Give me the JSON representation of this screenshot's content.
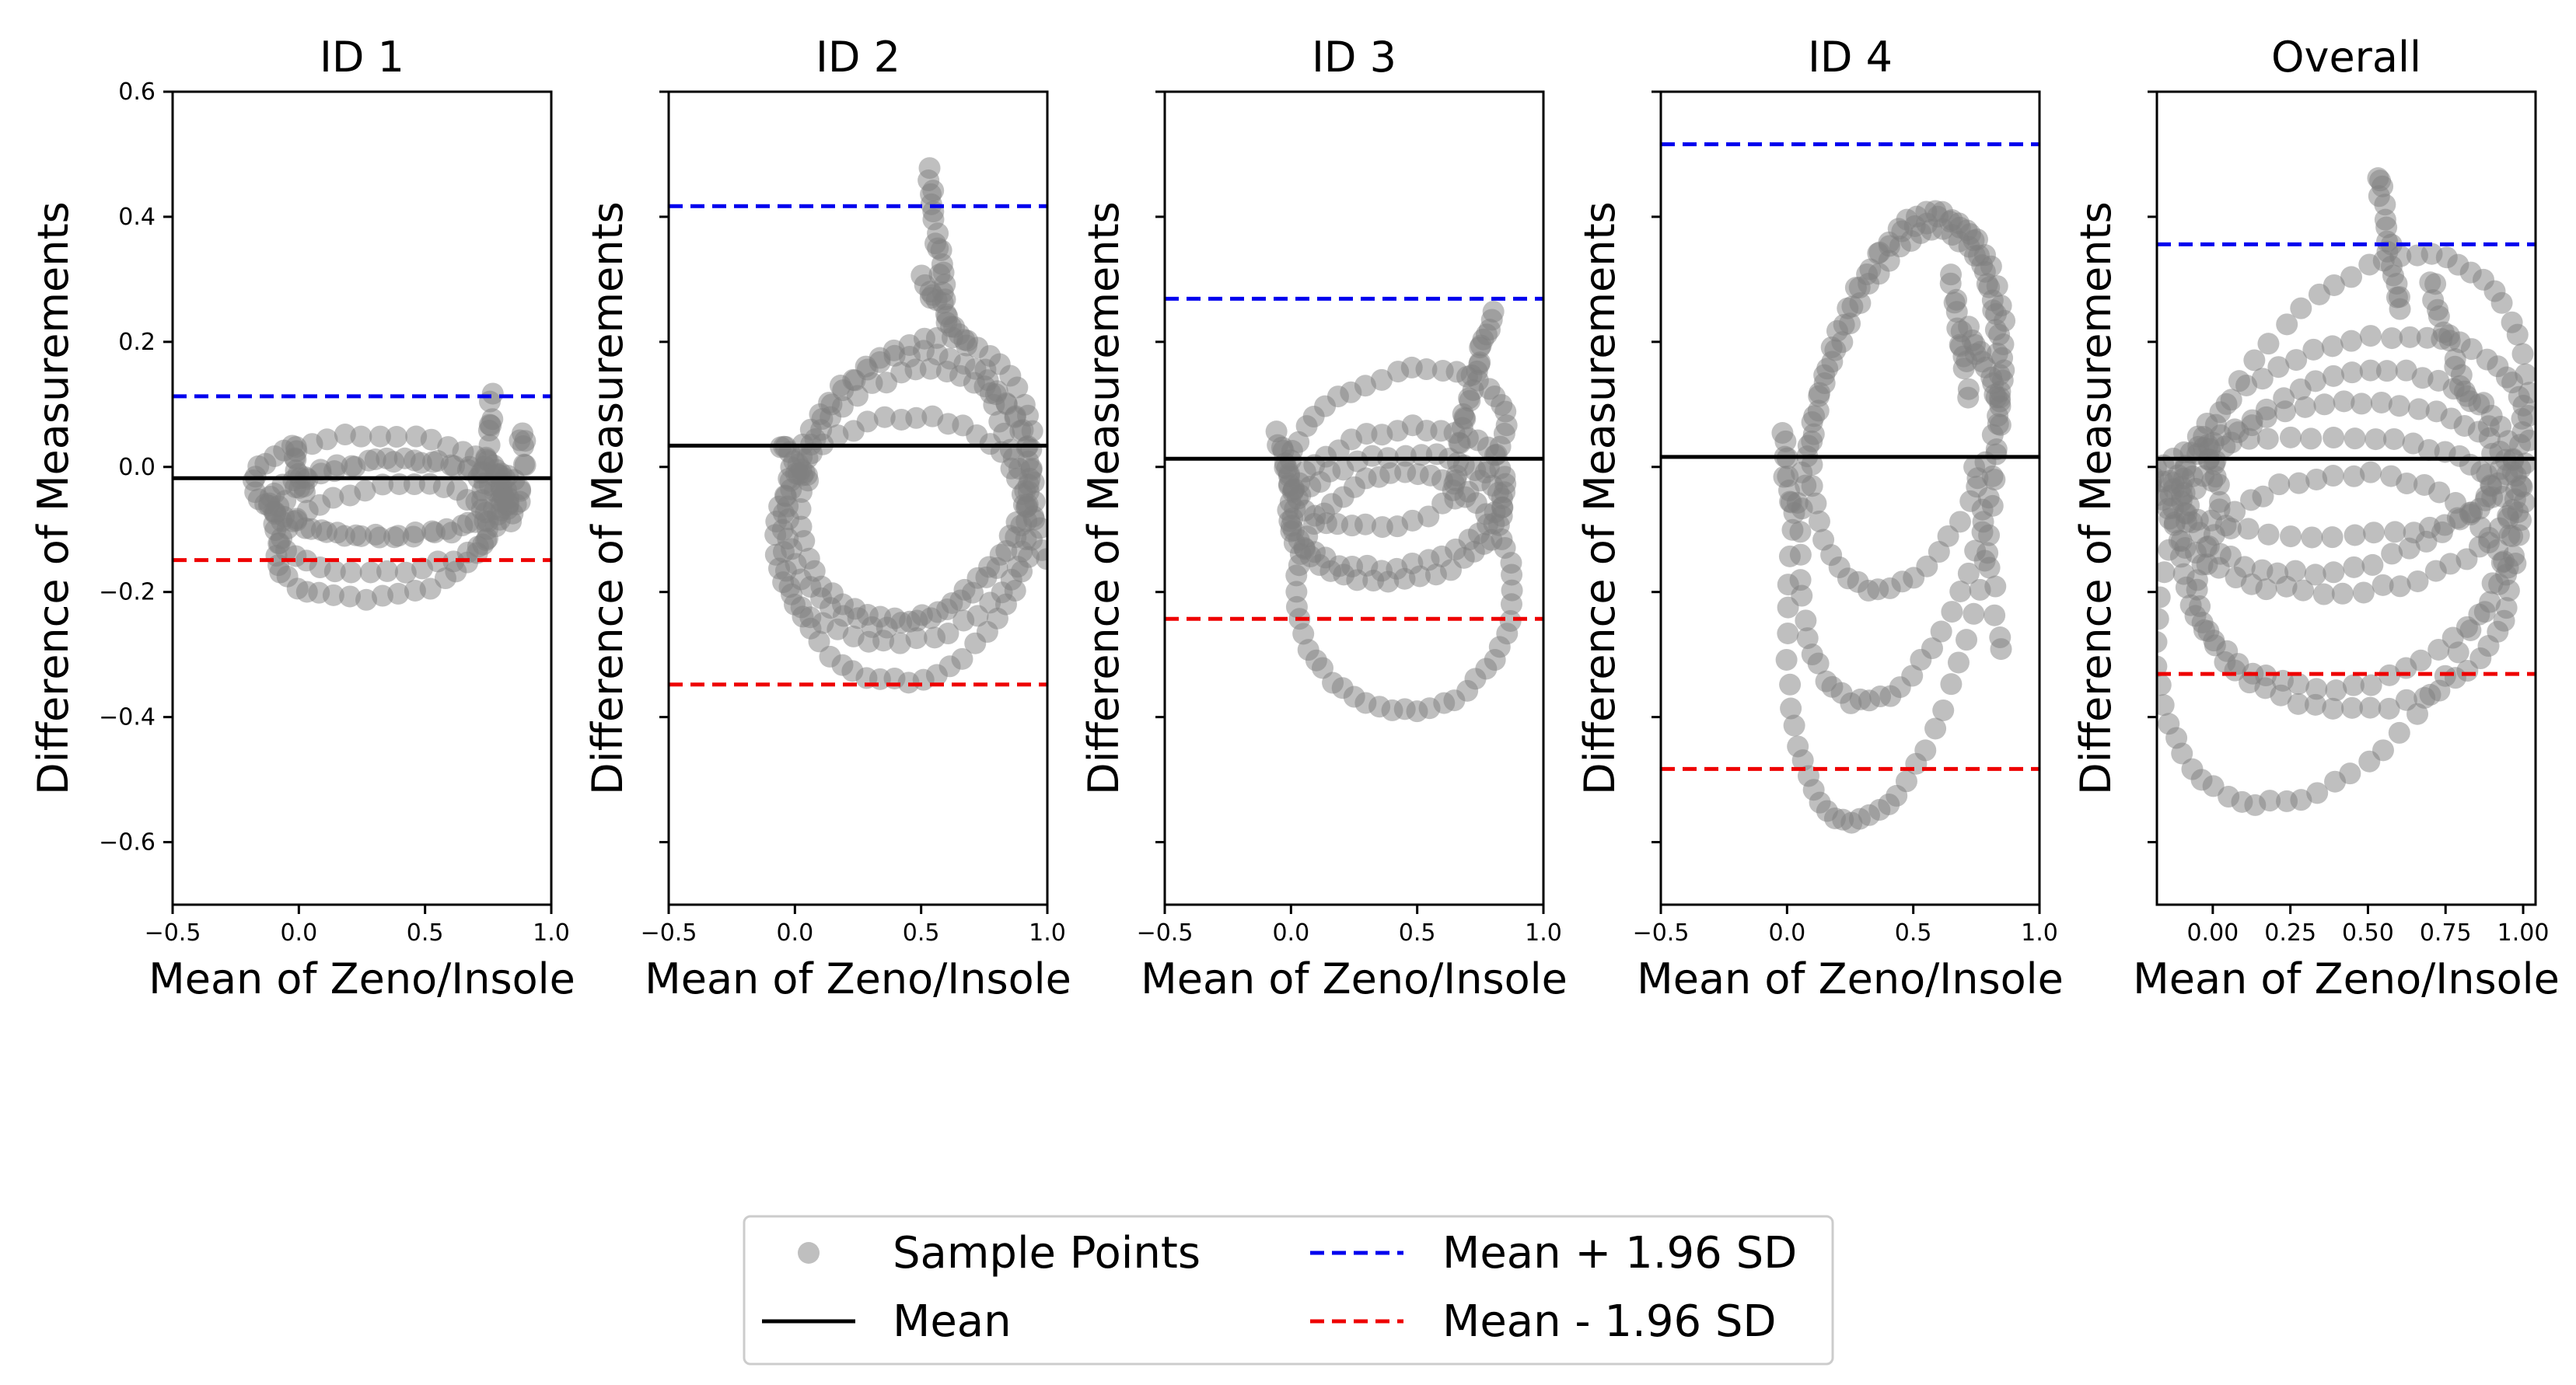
{
  "chart_data": {
    "type": "scatter",
    "kind": "bland-altman",
    "shared_ylabel": "Difference of Measurements",
    "shared_xlabel": "Mean of Zeno/Insole",
    "ylim": [
      -0.7,
      0.6
    ],
    "yticks": [
      -0.6,
      -0.4,
      -0.2,
      0.0,
      0.2,
      0.4,
      0.6
    ],
    "ytick_labels": [
      "−0.6",
      "−0.4",
      "−0.2",
      "0.0",
      "0.2",
      "0.4",
      "0.6"
    ],
    "legend": {
      "placement": "bottom-center",
      "entries": [
        {
          "key": "sample",
          "label": "Sample Points",
          "color": "#808080",
          "style": "marker"
        },
        {
          "key": "mean",
          "label": "Mean",
          "color": "#000000",
          "style": "solid"
        },
        {
          "key": "upper",
          "label": "Mean + 1.96 SD",
          "color": "#0000ee",
          "style": "dashed"
        },
        {
          "key": "lower",
          "label": "Mean - 1.96 SD",
          "color": "#ee0000",
          "style": "dashed"
        }
      ]
    },
    "panels": [
      {
        "title": "ID 1",
        "xlabel": "Mean of Zeno/Insole",
        "ylabel": "Difference of Measurements",
        "xlim": [
          -0.5,
          1.0
        ],
        "xticks": [
          -0.5,
          0.0,
          0.5,
          1.0
        ],
        "xtick_labels": [
          "−0.5",
          "0.0",
          "0.5",
          "1.0"
        ],
        "show_ytick_labels": true,
        "mean": -0.018,
        "upper": 0.113,
        "lower": -0.149,
        "loops": [
          {
            "cx": 0.32,
            "cy": -0.03,
            "rx": 0.5,
            "ry": 0.08,
            "tilt": -0.02,
            "n": 44
          },
          {
            "cx": 0.35,
            "cy": -0.08,
            "rx": 0.45,
            "ry": 0.09,
            "tilt": 0.05,
            "n": 40
          },
          {
            "cx": 0.33,
            "cy": -0.12,
            "rx": 0.42,
            "ry": 0.09,
            "tilt": 0.1,
            "n": 40
          },
          {
            "cx": 0.38,
            "cy": -0.05,
            "rx": 0.5,
            "ry": 0.06,
            "tilt": 0.03,
            "n": 40
          }
        ],
        "clusters": [
          {
            "x0": 0.72,
            "y0": -0.05,
            "x1": 0.77,
            "y1": 0.11,
            "n": 14
          },
          {
            "x0": 0.78,
            "y0": 0.0,
            "x1": 0.85,
            "y1": -0.08,
            "n": 12
          },
          {
            "x0": -0.02,
            "y0": 0.03,
            "x1": 0.02,
            "y1": -0.04,
            "n": 10
          },
          {
            "x0": 0.88,
            "y0": 0.06,
            "x1": 0.9,
            "y1": 0.0,
            "n": 6
          }
        ]
      },
      {
        "title": "ID 2",
        "xlabel": "Mean of Zeno/Insole",
        "ylabel": "Difference of Measurements",
        "xlim": [
          -0.5,
          1.0
        ],
        "xticks": [
          -0.5,
          0.0,
          0.5,
          1.0
        ],
        "xtick_labels": [
          "−0.5",
          "0.0",
          "0.5",
          "1.0"
        ],
        "show_ytick_labels": false,
        "mean": 0.034,
        "upper": 0.417,
        "lower": -0.348,
        "loops": [
          {
            "cx": 0.45,
            "cy": -0.08,
            "rx": 0.5,
            "ry": 0.26,
            "tilt": 0.1,
            "n": 56
          },
          {
            "cx": 0.45,
            "cy": -0.05,
            "rx": 0.48,
            "ry": 0.2,
            "tilt": 0.15,
            "n": 50
          },
          {
            "cx": 0.48,
            "cy": -0.02,
            "rx": 0.46,
            "ry": 0.22,
            "tilt": 0.2,
            "n": 50
          },
          {
            "cx": 0.42,
            "cy": -0.1,
            "rx": 0.5,
            "ry": 0.18,
            "tilt": 0.05,
            "n": 48
          }
        ],
        "clusters": [
          {
            "x0": 0.53,
            "y0": 0.47,
            "x1": 0.6,
            "y1": 0.25,
            "n": 18
          },
          {
            "x0": 0.5,
            "y0": 0.3,
            "x1": 0.68,
            "y1": 0.2,
            "n": 14
          },
          {
            "x0": -0.05,
            "y0": 0.04,
            "x1": 0.05,
            "y1": -0.03,
            "n": 10
          },
          {
            "x0": 0.75,
            "y0": 0.15,
            "x1": 1.0,
            "y1": -0.15,
            "n": 14
          }
        ]
      },
      {
        "title": "ID 3",
        "xlabel": "Mean of Zeno/Insole",
        "ylabel": "Difference of Measurements",
        "xlim": [
          -0.5,
          1.0
        ],
        "xticks": [
          -0.5,
          0.0,
          0.5,
          1.0
        ],
        "xtick_labels": [
          "−0.5",
          "0.0",
          "0.5",
          "1.0"
        ],
        "show_ytick_labels": false,
        "mean": 0.013,
        "upper": 0.269,
        "lower": -0.243,
        "loops": [
          {
            "cx": 0.45,
            "cy": -0.2,
            "rx": 0.43,
            "ry": 0.19,
            "tilt": 0.0,
            "n": 52
          },
          {
            "cx": 0.42,
            "cy": -0.05,
            "rx": 0.43,
            "ry": 0.11,
            "tilt": 0.1,
            "n": 44
          },
          {
            "cx": 0.42,
            "cy": 0.03,
            "rx": 0.43,
            "ry": 0.12,
            "tilt": 0.18,
            "n": 44
          },
          {
            "cx": 0.42,
            "cy": -0.08,
            "rx": 0.42,
            "ry": 0.1,
            "tilt": 0.06,
            "n": 42
          }
        ],
        "clusters": [
          {
            "x0": 0.68,
            "y0": 0.08,
            "x1": 0.8,
            "y1": 0.25,
            "n": 16
          },
          {
            "x0": 0.65,
            "y0": -0.04,
            "x1": 0.68,
            "y1": 0.08,
            "n": 8
          },
          {
            "x0": -0.05,
            "y0": 0.05,
            "x1": 0.0,
            "y1": -0.03,
            "n": 10
          }
        ]
      },
      {
        "title": "ID 4",
        "xlabel": "Mean of Zeno/Insole",
        "ylabel": "Difference of Measurements",
        "xlim": [
          -0.5,
          1.0
        ],
        "xticks": [
          -0.5,
          0.0,
          0.5,
          1.0
        ],
        "xtick_labels": [
          "−0.5",
          "0.0",
          "0.5",
          "1.0"
        ],
        "show_ytick_labels": false,
        "mean": 0.016,
        "upper": 0.516,
        "lower": -0.483,
        "loops": [
          {
            "cx": 0.42,
            "cy": -0.08,
            "rx": 0.42,
            "ry": 0.45,
            "tilt": 0.9,
            "n": 70
          },
          {
            "cx": 0.45,
            "cy": 0.0,
            "rx": 0.4,
            "ry": 0.35,
            "tilt": 0.7,
            "n": 60
          },
          {
            "cx": 0.48,
            "cy": 0.1,
            "rx": 0.38,
            "ry": 0.28,
            "tilt": 0.5,
            "n": 50
          }
        ],
        "clusters": [
          {
            "x0": 0.65,
            "y0": 0.3,
            "x1": 0.72,
            "y1": 0.12,
            "n": 14
          },
          {
            "x0": 0.72,
            "y0": 0.22,
            "x1": 0.85,
            "y1": 0.1,
            "n": 12
          },
          {
            "x0": 0.75,
            "y0": 0.0,
            "x1": 0.85,
            "y1": -0.3,
            "n": 10
          },
          {
            "x0": -0.02,
            "y0": 0.05,
            "x1": 0.02,
            "y1": -0.08,
            "n": 10
          }
        ]
      },
      {
        "title": "Overall",
        "xlabel": "Mean of Zeno/Insole",
        "ylabel": "Difference of Measurements",
        "xlim": [
          -0.18,
          1.04
        ],
        "xticks": [
          0.0,
          0.25,
          0.5,
          0.75,
          1.0
        ],
        "xtick_labels": [
          "0.00",
          "0.25",
          "0.50",
          "0.75",
          "1.00"
        ],
        "show_ytick_labels": false,
        "mean": 0.013,
        "upper": 0.356,
        "lower": -0.331,
        "loops": [
          {
            "cx": 0.42,
            "cy": -0.1,
            "rx": 0.6,
            "ry": 0.4,
            "tilt": 0.6,
            "n": 70
          },
          {
            "cx": 0.45,
            "cy": -0.1,
            "rx": 0.55,
            "ry": 0.25,
            "tilt": 0.15,
            "n": 60
          },
          {
            "cx": 0.42,
            "cy": -0.05,
            "rx": 0.56,
            "ry": 0.15,
            "tilt": 0.05,
            "n": 56
          },
          {
            "cx": 0.45,
            "cy": 0.02,
            "rx": 0.55,
            "ry": 0.18,
            "tilt": 0.2,
            "n": 56
          },
          {
            "cx": 0.45,
            "cy": -0.2,
            "rx": 0.5,
            "ry": 0.19,
            "tilt": 0.0,
            "n": 52
          },
          {
            "cx": 0.35,
            "cy": -0.03,
            "rx": 0.55,
            "ry": 0.08,
            "tilt": -0.02,
            "n": 50
          }
        ],
        "clusters": [
          {
            "x0": 0.53,
            "y0": 0.47,
            "x1": 0.6,
            "y1": 0.25,
            "n": 16
          },
          {
            "x0": 0.7,
            "y0": 0.3,
            "x1": 0.82,
            "y1": 0.1,
            "n": 14
          },
          {
            "x0": -0.02,
            "y0": 0.04,
            "x1": 0.02,
            "y1": -0.06,
            "n": 10
          },
          {
            "x0": -0.16,
            "y0": -0.02,
            "x1": -0.1,
            "y1": -0.05,
            "n": 4
          },
          {
            "x0": 0.88,
            "y0": 0.1,
            "x1": 0.98,
            "y1": -0.15,
            "n": 8
          }
        ]
      }
    ]
  }
}
